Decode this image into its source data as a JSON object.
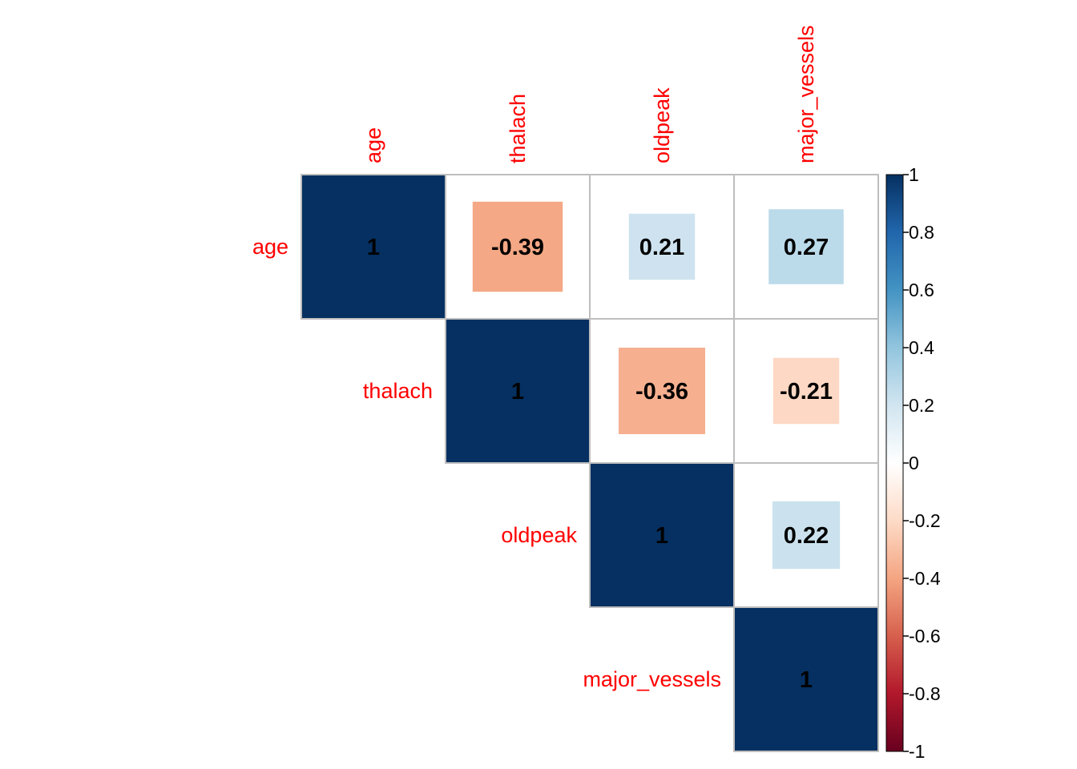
{
  "chart_data": {
    "type": "heatmap",
    "variables": [
      "age",
      "thalach",
      "oldpeak",
      "major_vessels"
    ],
    "matrix": [
      [
        1,
        -0.39,
        0.21,
        0.27
      ],
      [
        -0.39,
        1,
        -0.36,
        -0.21
      ],
      [
        0.21,
        -0.36,
        1,
        0.22
      ],
      [
        0.27,
        -0.21,
        0.22,
        1
      ]
    ],
    "display": "upper-triangle",
    "cell_labels": [
      [
        "1",
        "-0.39",
        "0.21",
        "0.27"
      ],
      [
        "",
        "1",
        "-0.36",
        "-0.21"
      ],
      [
        "",
        "",
        "1",
        "0.22"
      ],
      [
        "",
        "",
        "",
        "1"
      ]
    ],
    "color_scale": {
      "range": [
        -1,
        1
      ],
      "ticks": [
        "1",
        "0.8",
        "0.6",
        "0.4",
        "0.2",
        "0",
        "-0.2",
        "-0.4",
        "-0.6",
        "-0.8",
        "-1"
      ],
      "colors": [
        "#67001F",
        "#B2182B",
        "#D6604D",
        "#F4A582",
        "#FDDBC7",
        "#FFFFFF",
        "#D1E5F0",
        "#92C5DE",
        "#4393C3",
        "#2166AC",
        "#053061"
      ]
    },
    "label_color": "#FF0000",
    "grid_color": "#BEBEBE",
    "legend_position": "right",
    "square_size_encodes": "absolute correlation"
  }
}
